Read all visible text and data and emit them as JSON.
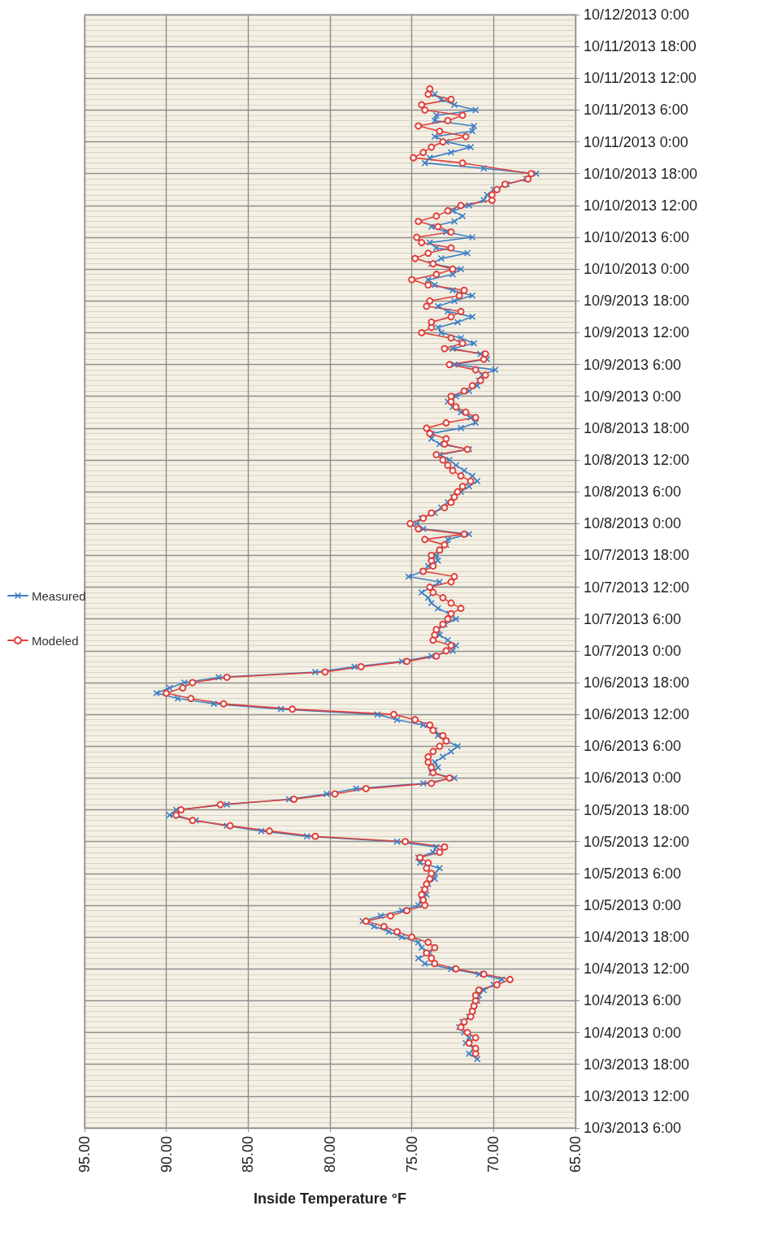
{
  "chart_data": {
    "type": "line",
    "xlabel": "Inside Temperature °F",
    "orientation": "horizontal",
    "ylim": [
      "2013-10-03T06:00",
      "2013-10-12T00:00"
    ],
    "yticks": [
      {
        "value": "2013-10-03T06:00",
        "label": "10/3/2013 6:00"
      },
      {
        "value": "2013-10-03T12:00",
        "label": "10/3/2013 12:00"
      },
      {
        "value": "2013-10-03T18:00",
        "label": "10/3/2013 18:00"
      },
      {
        "value": "2013-10-04T00:00",
        "label": "10/4/2013 0:00"
      },
      {
        "value": "2013-10-04T06:00",
        "label": "10/4/2013 6:00"
      },
      {
        "value": "2013-10-04T12:00",
        "label": "10/4/2013 12:00"
      },
      {
        "value": "2013-10-04T18:00",
        "label": "10/4/2013 18:00"
      },
      {
        "value": "2013-10-05T00:00",
        "label": "10/5/2013 0:00"
      },
      {
        "value": "2013-10-05T06:00",
        "label": "10/5/2013 6:00"
      },
      {
        "value": "2013-10-05T12:00",
        "label": "10/5/2013 12:00"
      },
      {
        "value": "2013-10-05T18:00",
        "label": "10/5/2013 18:00"
      },
      {
        "value": "2013-10-06T00:00",
        "label": "10/6/2013 0:00"
      },
      {
        "value": "2013-10-06T06:00",
        "label": "10/6/2013 6:00"
      },
      {
        "value": "2013-10-06T12:00",
        "label": "10/6/2013 12:00"
      },
      {
        "value": "2013-10-06T18:00",
        "label": "10/6/2013 18:00"
      },
      {
        "value": "2013-10-07T00:00",
        "label": "10/7/2013 0:00"
      },
      {
        "value": "2013-10-07T06:00",
        "label": "10/7/2013 6:00"
      },
      {
        "value": "2013-10-07T12:00",
        "label": "10/7/2013 12:00"
      },
      {
        "value": "2013-10-07T18:00",
        "label": "10/7/2013 18:00"
      },
      {
        "value": "2013-10-08T00:00",
        "label": "10/8/2013 0:00"
      },
      {
        "value": "2013-10-08T06:00",
        "label": "10/8/2013 6:00"
      },
      {
        "value": "2013-10-08T12:00",
        "label": "10/8/2013 12:00"
      },
      {
        "value": "2013-10-08T18:00",
        "label": "10/8/2013 18:00"
      },
      {
        "value": "2013-10-09T00:00",
        "label": "10/9/2013 0:00"
      },
      {
        "value": "2013-10-09T06:00",
        "label": "10/9/2013 6:00"
      },
      {
        "value": "2013-10-09T12:00",
        "label": "10/9/2013 12:00"
      },
      {
        "value": "2013-10-09T18:00",
        "label": "10/9/2013 18:00"
      },
      {
        "value": "2013-10-10T00:00",
        "label": "10/10/2013 0:00"
      },
      {
        "value": "2013-10-10T06:00",
        "label": "10/10/2013 6:00"
      },
      {
        "value": "2013-10-10T12:00",
        "label": "10/10/2013 12:00"
      },
      {
        "value": "2013-10-10T18:00",
        "label": "10/10/2013 18:00"
      },
      {
        "value": "2013-10-11T00:00",
        "label": "10/11/2013 0:00"
      },
      {
        "value": "2013-10-11T06:00",
        "label": "10/11/2013 6:00"
      },
      {
        "value": "2013-10-11T12:00",
        "label": "10/11/2013 12:00"
      },
      {
        "value": "2013-10-11T18:00",
        "label": "10/11/2013 18:00"
      },
      {
        "value": "2013-10-12T00:00",
        "label": "10/12/2013 0:00"
      }
    ],
    "xlim": [
      95,
      65
    ],
    "xticks": [
      {
        "value": 95,
        "label": "95.00"
      },
      {
        "value": 90,
        "label": "90.00"
      },
      {
        "value": 85,
        "label": "85.00"
      },
      {
        "value": 80,
        "label": "80.00"
      },
      {
        "value": 75,
        "label": "75.00"
      },
      {
        "value": 70,
        "label": "70.00"
      },
      {
        "value": 65,
        "label": "65.00"
      }
    ],
    "grid": true,
    "legend": "left",
    "line_style": "solid",
    "series": [
      {
        "name": "Measured",
        "color": "#3b7fc4",
        "marker": "cross",
        "x": [
          "2013-10-03T19:00",
          "2013-10-03T20:00",
          "2013-10-03T21:00",
          "2013-10-03T22:00",
          "2013-10-03T23:00",
          "2013-10-04T00:00",
          "2013-10-04T01:00",
          "2013-10-04T02:00",
          "2013-10-04T03:00",
          "2013-10-04T04:00",
          "2013-10-04T05:00",
          "2013-10-04T06:00",
          "2013-10-04T07:00",
          "2013-10-04T08:00",
          "2013-10-04T09:00",
          "2013-10-04T10:00",
          "2013-10-04T11:00",
          "2013-10-04T12:00",
          "2013-10-04T13:00",
          "2013-10-04T14:00",
          "2013-10-04T15:00",
          "2013-10-04T16:00",
          "2013-10-04T17:00",
          "2013-10-04T18:00",
          "2013-10-04T19:00",
          "2013-10-04T20:00",
          "2013-10-04T21:00",
          "2013-10-04T22:00",
          "2013-10-04T23:00",
          "2013-10-05T00:00",
          "2013-10-05T01:00",
          "2013-10-05T02:00",
          "2013-10-05T03:00",
          "2013-10-05T04:00",
          "2013-10-05T05:00",
          "2013-10-05T06:00",
          "2013-10-05T07:00",
          "2013-10-05T08:00",
          "2013-10-05T09:00",
          "2013-10-05T10:00",
          "2013-10-05T11:00",
          "2013-10-05T12:00",
          "2013-10-05T13:00",
          "2013-10-05T14:00",
          "2013-10-05T15:00",
          "2013-10-05T16:00",
          "2013-10-05T17:00",
          "2013-10-05T18:00",
          "2013-10-05T19:00",
          "2013-10-05T20:00",
          "2013-10-05T21:00",
          "2013-10-05T22:00",
          "2013-10-05T23:00",
          "2013-10-06T00:00",
          "2013-10-06T01:00",
          "2013-10-06T02:00",
          "2013-10-06T03:00",
          "2013-10-06T04:00",
          "2013-10-06T05:00",
          "2013-10-06T06:00",
          "2013-10-06T07:00",
          "2013-10-06T08:00",
          "2013-10-06T09:00",
          "2013-10-06T10:00",
          "2013-10-06T11:00",
          "2013-10-06T12:00",
          "2013-10-06T13:00",
          "2013-10-06T14:00",
          "2013-10-06T15:00",
          "2013-10-06T16:00",
          "2013-10-06T17:00",
          "2013-10-06T18:00",
          "2013-10-06T19:00",
          "2013-10-06T20:00",
          "2013-10-06T21:00",
          "2013-10-06T22:00",
          "2013-10-06T23:00",
          "2013-10-07T00:00",
          "2013-10-07T01:00",
          "2013-10-07T02:00",
          "2013-10-07T03:00",
          "2013-10-07T04:00",
          "2013-10-07T05:00",
          "2013-10-07T06:00",
          "2013-10-07T07:00",
          "2013-10-07T08:00",
          "2013-10-07T09:00",
          "2013-10-07T10:00",
          "2013-10-07T11:00",
          "2013-10-07T12:00",
          "2013-10-07T13:00",
          "2013-10-07T14:00",
          "2013-10-07T15:00",
          "2013-10-07T16:00",
          "2013-10-07T17:00",
          "2013-10-07T18:00",
          "2013-10-07T19:00",
          "2013-10-07T20:00",
          "2013-10-07T21:00",
          "2013-10-07T22:00",
          "2013-10-07T23:00",
          "2013-10-08T00:00",
          "2013-10-08T01:00",
          "2013-10-08T02:00",
          "2013-10-08T03:00",
          "2013-10-08T04:00",
          "2013-10-08T05:00",
          "2013-10-08T06:00",
          "2013-10-08T07:00",
          "2013-10-08T08:00",
          "2013-10-08T09:00",
          "2013-10-08T10:00",
          "2013-10-08T11:00",
          "2013-10-08T12:00",
          "2013-10-08T13:00",
          "2013-10-08T14:00",
          "2013-10-08T15:00",
          "2013-10-08T16:00",
          "2013-10-08T17:00",
          "2013-10-08T18:00",
          "2013-10-08T19:00",
          "2013-10-08T20:00",
          "2013-10-08T21:00",
          "2013-10-08T22:00",
          "2013-10-08T23:00",
          "2013-10-09T00:00",
          "2013-10-09T01:00",
          "2013-10-09T02:00",
          "2013-10-09T03:00",
          "2013-10-09T04:00",
          "2013-10-09T05:00",
          "2013-10-09T06:00",
          "2013-10-09T07:00",
          "2013-10-09T08:00",
          "2013-10-09T09:00",
          "2013-10-09T10:00",
          "2013-10-09T11:00",
          "2013-10-09T12:00",
          "2013-10-09T13:00",
          "2013-10-09T14:00",
          "2013-10-09T15:00",
          "2013-10-09T16:00",
          "2013-10-09T17:00",
          "2013-10-09T18:00",
          "2013-10-09T19:00",
          "2013-10-09T20:00",
          "2013-10-09T21:00",
          "2013-10-09T22:00",
          "2013-10-09T23:00",
          "2013-10-10T00:00",
          "2013-10-10T01:00",
          "2013-10-10T02:00",
          "2013-10-10T03:00",
          "2013-10-10T04:00",
          "2013-10-10T05:00",
          "2013-10-10T06:00",
          "2013-10-10T07:00",
          "2013-10-10T08:00",
          "2013-10-10T09:00",
          "2013-10-10T10:00",
          "2013-10-10T11:00",
          "2013-10-10T12:00",
          "2013-10-10T13:00",
          "2013-10-10T14:00",
          "2013-10-10T15:00",
          "2013-10-10T16:00",
          "2013-10-10T17:00",
          "2013-10-10T18:00",
          "2013-10-10T19:00",
          "2013-10-10T20:00",
          "2013-10-10T21:00",
          "2013-10-10T22:00",
          "2013-10-10T23:00",
          "2013-10-11T00:00",
          "2013-10-11T01:00",
          "2013-10-11T02:00",
          "2013-10-11T03:00",
          "2013-10-11T04:00",
          "2013-10-11T05:00",
          "2013-10-11T06:00",
          "2013-10-11T07:00",
          "2013-10-11T08:00",
          "2013-10-11T09:00"
        ],
        "values": [
          71.0,
          71.5,
          71.2,
          71.7,
          71.5,
          71.8,
          72.1,
          71.9,
          71.5,
          71.3,
          71.2,
          71.0,
          70.9,
          70.6,
          70.0,
          69.5,
          70.9,
          72.6,
          74.2,
          74.6,
          73.9,
          74.4,
          74.6,
          75.6,
          76.4,
          77.3,
          78.0,
          76.9,
          75.6,
          74.6,
          74.4,
          74.1,
          74.3,
          74.0,
          73.6,
          73.6,
          73.3,
          74.5,
          74.6,
          73.7,
          73.5,
          75.9,
          81.4,
          84.2,
          86.3,
          88.2,
          89.8,
          89.4,
          86.3,
          82.5,
          80.2,
          78.4,
          74.3,
          72.4,
          73.8,
          73.4,
          73.6,
          73.1,
          72.6,
          72.2,
          72.9,
          73.4,
          73.6,
          74.3,
          75.9,
          77.1,
          83.0,
          87.1,
          89.3,
          90.6,
          89.8,
          88.9,
          86.8,
          80.9,
          78.5,
          75.6,
          73.8,
          72.5,
          72.3,
          72.8,
          73.3,
          73.4,
          73.0,
          72.3,
          72.7,
          73.4,
          73.8,
          74.0,
          74.4,
          73.8,
          73.3,
          75.2,
          74.3,
          74.0,
          73.4,
          73.5,
          73.3,
          72.9,
          72.8,
          71.5,
          74.3,
          74.7,
          74.4,
          73.6,
          73.2,
          72.8,
          72.5,
          72.0,
          71.5,
          71.0,
          71.3,
          71.8,
          72.3,
          72.7,
          73.3,
          71.5,
          73.3,
          73.8,
          73.8,
          72.0,
          71.1,
          71.4,
          72.0,
          72.5,
          72.8,
          72.3,
          71.5,
          71.0,
          70.9,
          70.7,
          69.9,
          72.4,
          70.4,
          70.8,
          72.5,
          71.2,
          72.0,
          73.2,
          73.4,
          72.2,
          71.3,
          72.8,
          73.4,
          72.4,
          71.3,
          72.5,
          73.6,
          74.0,
          72.5,
          72.0,
          73.8,
          73.2,
          71.6,
          73.5,
          73.9,
          71.3,
          72.9,
          73.8,
          72.4,
          71.9,
          72.5,
          71.5,
          70.6,
          70.4,
          70.0,
          69.2,
          68.0,
          67.4,
          70.6,
          74.2,
          73.9,
          72.6,
          71.4,
          72.9,
          73.6,
          71.3,
          71.2,
          73.6,
          73.5,
          71.1,
          72.4,
          73.2,
          73.6
        ]
      },
      {
        "name": "Modeled",
        "color": "#e0413b",
        "marker": "circle",
        "x": [
          "2013-10-03T20:00",
          "2013-10-03T21:00",
          "2013-10-03T22:00",
          "2013-10-03T23:00",
          "2013-10-04T00:00",
          "2013-10-04T01:00",
          "2013-10-04T02:00",
          "2013-10-04T03:00",
          "2013-10-04T04:00",
          "2013-10-04T05:00",
          "2013-10-04T06:00",
          "2013-10-04T07:00",
          "2013-10-04T08:00",
          "2013-10-04T09:00",
          "2013-10-04T10:00",
          "2013-10-04T11:00",
          "2013-10-04T12:00",
          "2013-10-04T13:00",
          "2013-10-04T14:00",
          "2013-10-04T15:00",
          "2013-10-04T16:00",
          "2013-10-04T17:00",
          "2013-10-04T18:00",
          "2013-10-04T19:00",
          "2013-10-04T20:00",
          "2013-10-04T21:00",
          "2013-10-04T22:00",
          "2013-10-04T23:00",
          "2013-10-05T00:00",
          "2013-10-05T01:00",
          "2013-10-05T02:00",
          "2013-10-05T03:00",
          "2013-10-05T04:00",
          "2013-10-05T05:00",
          "2013-10-05T06:00",
          "2013-10-05T07:00",
          "2013-10-05T08:00",
          "2013-10-05T09:00",
          "2013-10-05T10:00",
          "2013-10-05T11:00",
          "2013-10-05T12:00",
          "2013-10-05T13:00",
          "2013-10-05T14:00",
          "2013-10-05T15:00",
          "2013-10-05T16:00",
          "2013-10-05T17:00",
          "2013-10-05T18:00",
          "2013-10-05T19:00",
          "2013-10-05T20:00",
          "2013-10-05T21:00",
          "2013-10-05T22:00",
          "2013-10-05T23:00",
          "2013-10-06T00:00",
          "2013-10-06T01:00",
          "2013-10-06T02:00",
          "2013-10-06T03:00",
          "2013-10-06T04:00",
          "2013-10-06T05:00",
          "2013-10-06T06:00",
          "2013-10-06T07:00",
          "2013-10-06T08:00",
          "2013-10-06T09:00",
          "2013-10-06T10:00",
          "2013-10-06T11:00",
          "2013-10-06T12:00",
          "2013-10-06T13:00",
          "2013-10-06T14:00",
          "2013-10-06T15:00",
          "2013-10-06T16:00",
          "2013-10-06T17:00",
          "2013-10-06T18:00",
          "2013-10-06T19:00",
          "2013-10-06T20:00",
          "2013-10-06T21:00",
          "2013-10-06T22:00",
          "2013-10-06T23:00",
          "2013-10-07T00:00",
          "2013-10-07T01:00",
          "2013-10-07T02:00",
          "2013-10-07T03:00",
          "2013-10-07T04:00",
          "2013-10-07T05:00",
          "2013-10-07T06:00",
          "2013-10-07T07:00",
          "2013-10-07T08:00",
          "2013-10-07T09:00",
          "2013-10-07T10:00",
          "2013-10-07T11:00",
          "2013-10-07T12:00",
          "2013-10-07T13:00",
          "2013-10-07T14:00",
          "2013-10-07T15:00",
          "2013-10-07T16:00",
          "2013-10-07T17:00",
          "2013-10-07T18:00",
          "2013-10-07T19:00",
          "2013-10-07T20:00",
          "2013-10-07T21:00",
          "2013-10-07T22:00",
          "2013-10-07T23:00",
          "2013-10-08T00:00",
          "2013-10-08T01:00",
          "2013-10-08T02:00",
          "2013-10-08T03:00",
          "2013-10-08T04:00",
          "2013-10-08T05:00",
          "2013-10-08T06:00",
          "2013-10-08T07:00",
          "2013-10-08T08:00",
          "2013-10-08T09:00",
          "2013-10-08T10:00",
          "2013-10-08T11:00",
          "2013-10-08T12:00",
          "2013-10-08T13:00",
          "2013-10-08T14:00",
          "2013-10-08T15:00",
          "2013-10-08T16:00",
          "2013-10-08T17:00",
          "2013-10-08T18:00",
          "2013-10-08T19:00",
          "2013-10-08T20:00",
          "2013-10-08T21:00",
          "2013-10-08T22:00",
          "2013-10-08T23:00",
          "2013-10-09T00:00",
          "2013-10-09T01:00",
          "2013-10-09T02:00",
          "2013-10-09T03:00",
          "2013-10-09T04:00",
          "2013-10-09T05:00",
          "2013-10-09T06:00",
          "2013-10-09T07:00",
          "2013-10-09T08:00",
          "2013-10-09T09:00",
          "2013-10-09T10:00",
          "2013-10-09T11:00",
          "2013-10-09T12:00",
          "2013-10-09T13:00",
          "2013-10-09T14:00",
          "2013-10-09T15:00",
          "2013-10-09T16:00",
          "2013-10-09T17:00",
          "2013-10-09T18:00",
          "2013-10-09T19:00",
          "2013-10-09T20:00",
          "2013-10-09T21:00",
          "2013-10-09T22:00",
          "2013-10-09T23:00",
          "2013-10-10T00:00",
          "2013-10-10T01:00",
          "2013-10-10T02:00",
          "2013-10-10T03:00",
          "2013-10-10T04:00",
          "2013-10-10T05:00",
          "2013-10-10T06:00",
          "2013-10-10T07:00",
          "2013-10-10T08:00",
          "2013-10-10T09:00",
          "2013-10-10T10:00",
          "2013-10-10T11:00",
          "2013-10-10T12:00",
          "2013-10-10T13:00",
          "2013-10-10T14:00",
          "2013-10-10T15:00",
          "2013-10-10T16:00",
          "2013-10-10T17:00",
          "2013-10-10T18:00",
          "2013-10-10T20:00",
          "2013-10-10T21:00",
          "2013-10-10T22:00",
          "2013-10-10T23:00",
          "2013-10-11T00:00",
          "2013-10-11T01:00",
          "2013-10-11T02:00",
          "2013-10-11T03:00",
          "2013-10-11T04:00",
          "2013-10-11T05:00",
          "2013-10-11T06:00",
          "2013-10-11T07:00",
          "2013-10-11T08:00",
          "2013-10-11T09:00",
          "2013-10-11T10:00"
        ],
        "values": [
          71.1,
          71.1,
          71.5,
          71.1,
          71.6,
          72.0,
          71.8,
          71.4,
          71.3,
          71.2,
          71.1,
          71.1,
          70.9,
          69.8,
          69.0,
          70.6,
          72.3,
          73.6,
          73.8,
          74.1,
          73.6,
          74.0,
          75.0,
          75.9,
          76.7,
          77.8,
          76.3,
          75.3,
          74.2,
          74.3,
          74.4,
          74.2,
          74.1,
          73.9,
          73.8,
          74.1,
          74.0,
          74.5,
          73.3,
          73.0,
          75.4,
          80.9,
          83.7,
          86.1,
          88.4,
          89.4,
          89.1,
          86.7,
          82.2,
          79.7,
          77.8,
          73.8,
          72.7,
          73.7,
          73.8,
          74.0,
          74.0,
          73.7,
          73.3,
          72.9,
          73.1,
          73.7,
          73.9,
          74.8,
          76.1,
          82.3,
          86.5,
          88.5,
          90.0,
          89.0,
          88.4,
          86.3,
          80.3,
          78.1,
          75.3,
          73.5,
          72.9,
          72.6,
          73.7,
          73.6,
          73.5,
          73.1,
          72.8,
          72.6,
          72.0,
          72.6,
          73.1,
          73.7,
          73.9,
          72.6,
          72.4,
          74.3,
          73.7,
          73.8,
          73.8,
          73.3,
          73.0,
          74.2,
          71.8,
          74.6,
          75.1,
          74.3,
          73.8,
          73.0,
          72.6,
          72.4,
          72.2,
          71.9,
          71.4,
          72.0,
          72.5,
          72.8,
          73.1,
          73.5,
          71.6,
          73.0,
          72.9,
          73.9,
          74.1,
          72.9,
          71.1,
          71.7,
          72.3,
          72.6,
          72.6,
          71.8,
          71.3,
          70.8,
          70.5,
          71.1,
          72.7,
          70.6,
          70.5,
          73.0,
          71.9,
          72.6,
          74.4,
          73.8,
          73.8,
          72.6,
          72.0,
          74.1,
          73.9,
          72.1,
          71.8,
          74.0,
          75.0,
          73.5,
          72.5,
          73.7,
          74.8,
          74.0,
          72.6,
          74.4,
          74.7,
          72.6,
          73.4,
          74.6,
          73.5,
          72.8,
          72.0,
          70.1,
          70.1,
          69.8,
          69.3,
          67.9,
          67.7,
          71.9,
          74.9,
          74.3,
          73.8,
          73.1,
          71.7,
          73.3,
          74.6,
          72.8,
          71.9,
          74.2,
          74.4,
          72.6,
          74.0,
          73.9
        ]
      }
    ]
  }
}
